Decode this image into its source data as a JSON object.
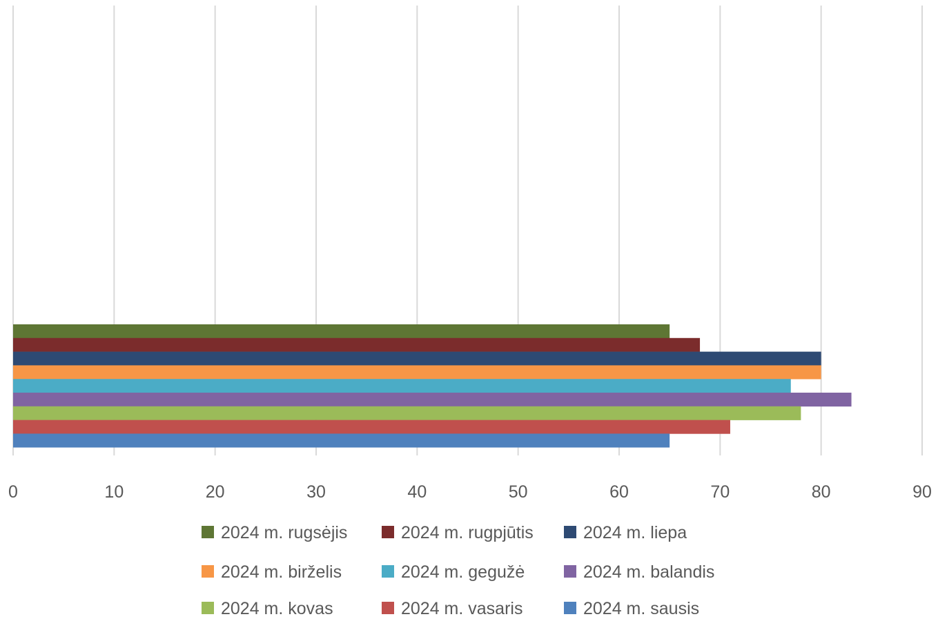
{
  "chart_data": {
    "type": "bar",
    "orientation": "horizontal",
    "title": "",
    "xlabel": "",
    "ylabel": "",
    "xlim": [
      0,
      90
    ],
    "x_ticks": [
      "0",
      "10",
      "20",
      "30",
      "40",
      "50",
      "60",
      "70",
      "80",
      "90"
    ],
    "grid": true,
    "legend_position": "bottom",
    "series": [
      {
        "name": "2024 m. rugsėjis",
        "value": 65,
        "color": "#5e7634"
      },
      {
        "name": "2024 m. rugpjūtis",
        "value": 68,
        "color": "#7b2c2c"
      },
      {
        "name": "2024 m. liepa",
        "value": 80,
        "color": "#2e4a73"
      },
      {
        "name": "2024 m. birželis",
        "value": 80,
        "color": "#f79646"
      },
      {
        "name": "2024 m. gegužė",
        "value": 77,
        "color": "#4bacc6"
      },
      {
        "name": "2024 m. balandis",
        "value": 83,
        "color": "#8064a2"
      },
      {
        "name": "2024 m. kovas",
        "value": 78,
        "color": "#9bbb59"
      },
      {
        "name": "2024 m. vasaris",
        "value": 71,
        "color": "#c0504d"
      },
      {
        "name": "2024 m. sausis",
        "value": 65,
        "color": "#4f81bd"
      }
    ]
  }
}
